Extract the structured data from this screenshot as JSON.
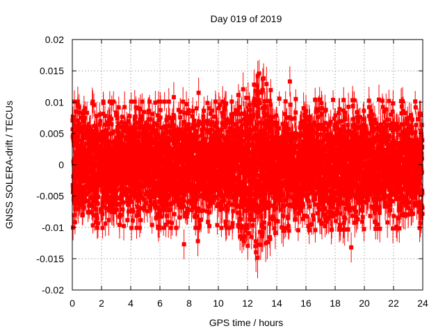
{
  "chart_data": {
    "type": "scatter",
    "title": "Day 019 of 2019",
    "xlabel": "GPS time / hours",
    "ylabel": "GNSS SOLERA-drift / TECUs",
    "xlim": [
      0,
      24
    ],
    "ylim": [
      -0.02,
      0.02
    ],
    "xticks": [
      "0",
      "2",
      "4",
      "6",
      "8",
      "10",
      "12",
      "14",
      "16",
      "18",
      "20",
      "22",
      "24"
    ],
    "yticks": [
      "-0.02",
      "-0.015",
      "-0.01",
      "-0.005",
      "0",
      "0.005",
      "0.01",
      "0.015",
      "0.02"
    ],
    "xtick_values": [
      0,
      2,
      4,
      6,
      8,
      10,
      12,
      14,
      16,
      18,
      20,
      22,
      24
    ],
    "ytick_values": [
      -0.02,
      -0.015,
      -0.01,
      -0.005,
      0,
      0.005,
      0.01,
      0.015,
      0.02
    ],
    "grid": true,
    "series_color": "#ff0000",
    "marker": "square",
    "error_bars": true,
    "noise_profile": [
      {
        "x": 0,
        "sd": 0.0042,
        "err": 0.0018
      },
      {
        "x": 6,
        "sd": 0.0042,
        "err": 0.0018
      },
      {
        "x": 11,
        "sd": 0.0042,
        "err": 0.0018
      },
      {
        "x": 12.7,
        "sd": 0.0062,
        "err": 0.0024
      },
      {
        "x": 14,
        "sd": 0.0044,
        "err": 0.0019
      },
      {
        "x": 24,
        "sd": 0.0042,
        "err": 0.0018
      }
    ],
    "point_interval_hours": 0.005,
    "notable_points": [
      {
        "x": 12.7,
        "y": 0.0142
      },
      {
        "x": 12.45,
        "y": 0.0128
      },
      {
        "x": 13.1,
        "y": 0.0138
      },
      {
        "x": 14.9,
        "y": 0.0133
      },
      {
        "x": 8.65,
        "y": 0.0115
      },
      {
        "x": 6.95,
        "y": 0.0108
      },
      {
        "x": 21.0,
        "y": 0.0104
      },
      {
        "x": 0.8,
        "y": 0.0086
      },
      {
        "x": 23.85,
        "y": 0.0079
      },
      {
        "x": 12.9,
        "y": -0.0128
      },
      {
        "x": 7.65,
        "y": -0.0127
      },
      {
        "x": 8.6,
        "y": -0.0122
      },
      {
        "x": 19.1,
        "y": -0.0132
      },
      {
        "x": 5.9,
        "y": -0.0099
      },
      {
        "x": 18.6,
        "y": -0.0093
      },
      {
        "x": 23.9,
        "y": -0.0085
      },
      {
        "x": 0.05,
        "y": -0.0037
      }
    ]
  }
}
